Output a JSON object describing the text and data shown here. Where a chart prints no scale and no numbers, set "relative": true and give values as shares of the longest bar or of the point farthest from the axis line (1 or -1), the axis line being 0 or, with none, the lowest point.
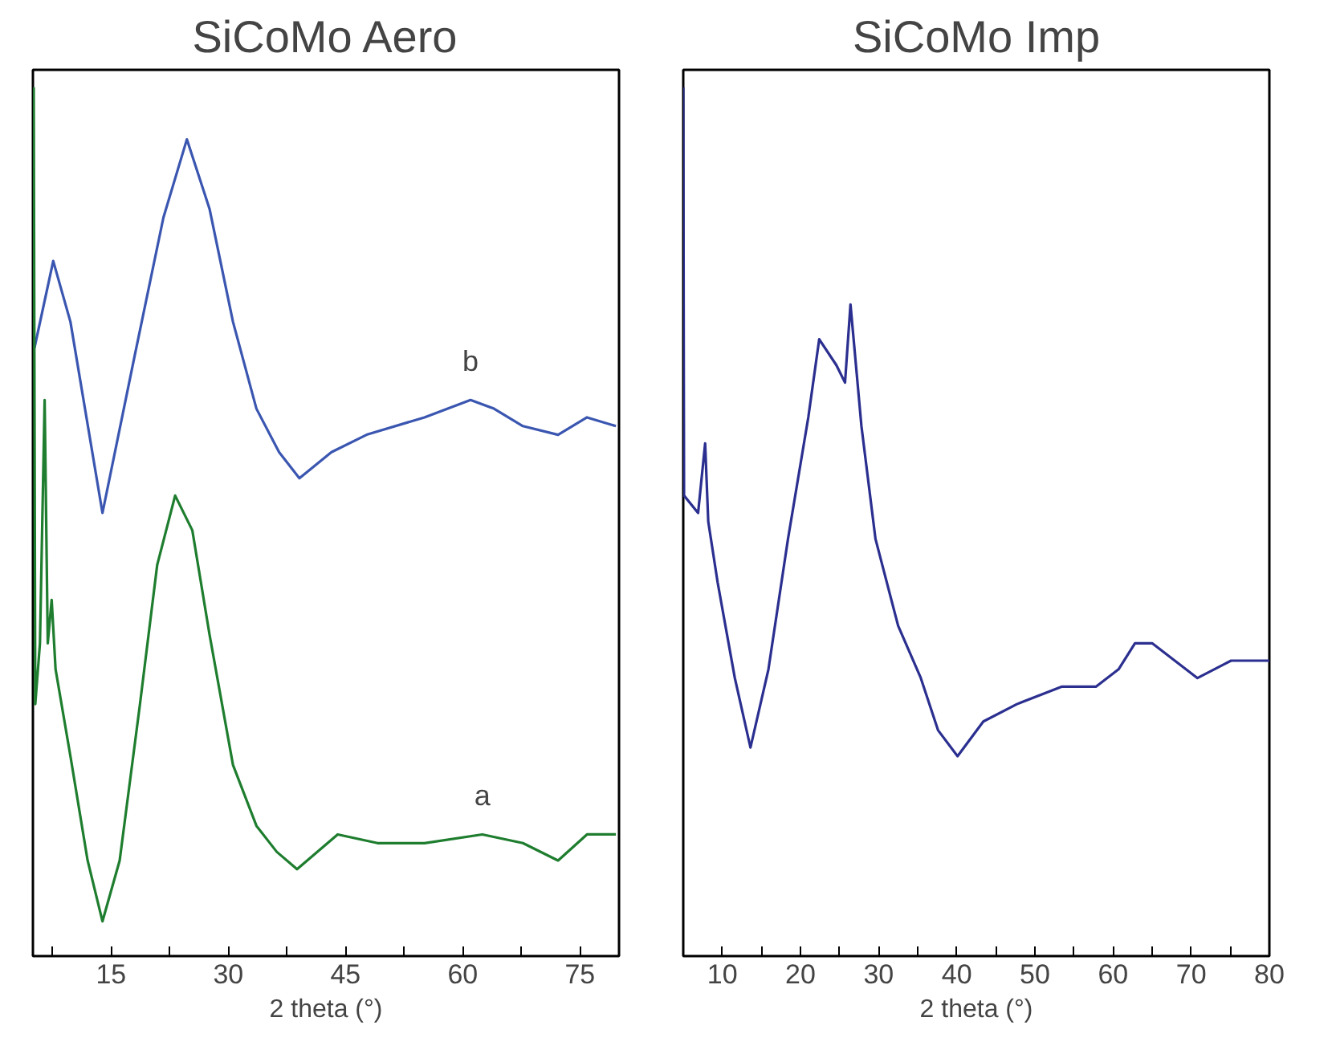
{
  "chart_data": [
    {
      "type": "line",
      "title": "SiCoMo Aero",
      "xlabel": "2 theta (°)",
      "relative": true,
      "tick_labels": "x",
      "grid": false,
      "xlim": [
        5,
        80
      ],
      "xticks": [
        {
          "value": 7.5,
          "label": null
        },
        15,
        {
          "value": 22.5,
          "label": null
        },
        30,
        {
          "value": 37.5,
          "label": null
        },
        45,
        {
          "value": 52.5,
          "label": null
        },
        60,
        {
          "value": 67.5,
          "label": null
        },
        75
      ],
      "series": [
        {
          "name": "b",
          "color": "#3a56b0",
          "x": [
            5.2,
            7.6,
            9.8,
            13.9,
            18,
            21.7,
            24.7,
            27.6,
            30.6,
            33.6,
            36.5,
            39.1,
            43.2,
            47.7,
            55.1,
            61,
            64,
            67.7,
            72.2,
            75.9,
            79.6
          ],
          "values": [
            0.7,
            0.8,
            0.73,
            0.51,
            0.69,
            0.85,
            0.94,
            0.86,
            0.73,
            0.63,
            0.58,
            0.55,
            0.58,
            0.6,
            0.62,
            0.64,
            0.63,
            0.61,
            0.6,
            0.62,
            0.61
          ]
        },
        {
          "name": "a",
          "color": "#1e7d2e",
          "x": [
            5.1,
            5.3,
            5.9,
            6.5,
            6.9,
            7.4,
            7.9,
            9.8,
            12,
            13.9,
            16.1,
            18.7,
            20.9,
            23.2,
            25.4,
            27.6,
            30.6,
            33.6,
            36.2,
            38.8,
            44,
            49.1,
            55.1,
            62.5,
            67.7,
            72.2,
            75.9,
            79.6
          ],
          "values": [
            1.0,
            0.29,
            0.36,
            0.64,
            0.36,
            0.41,
            0.33,
            0.23,
            0.11,
            0.04,
            0.11,
            0.29,
            0.45,
            0.53,
            0.49,
            0.37,
            0.22,
            0.15,
            0.12,
            0.1,
            0.14,
            0.13,
            0.13,
            0.14,
            0.13,
            0.11,
            0.14,
            0.14
          ]
        }
      ]
    },
    {
      "type": "line",
      "title": "SiCoMo Imp",
      "xlabel": "2 theta (°)",
      "relative": true,
      "tick_labels": "x",
      "grid": false,
      "xlim": [
        5,
        80
      ],
      "xticks": [
        10,
        {
          "value": 15,
          "label": null
        },
        20,
        {
          "value": 25,
          "label": null
        },
        30,
        {
          "value": 35,
          "label": null
        },
        40,
        {
          "value": 45,
          "label": null
        },
        50,
        {
          "value": 55,
          "label": null
        },
        60,
        {
          "value": 65,
          "label": null
        },
        70,
        {
          "value": 75,
          "label": null
        },
        80
      ],
      "series": [
        {
          "color": "#2b2f8f",
          "x": [
            5.0,
            5.1,
            6.9,
            7.8,
            8.2,
            9.4,
            11.6,
            13.6,
            15.9,
            18.4,
            21,
            22.4,
            24.6,
            25.7,
            26.4,
            27.8,
            29.6,
            32.5,
            35.4,
            37.6,
            40.1,
            43.4,
            47.7,
            53.4,
            57.8,
            60.7,
            62.8,
            65,
            67.9,
            70.8,
            75.1,
            80
          ],
          "values": [
            1.0,
            0.53,
            0.51,
            0.59,
            0.5,
            0.43,
            0.32,
            0.24,
            0.33,
            0.48,
            0.62,
            0.71,
            0.68,
            0.66,
            0.75,
            0.61,
            0.48,
            0.38,
            0.32,
            0.26,
            0.23,
            0.27,
            0.29,
            0.31,
            0.31,
            0.33,
            0.36,
            0.36,
            0.34,
            0.32,
            0.34,
            0.34
          ]
        }
      ]
    }
  ]
}
